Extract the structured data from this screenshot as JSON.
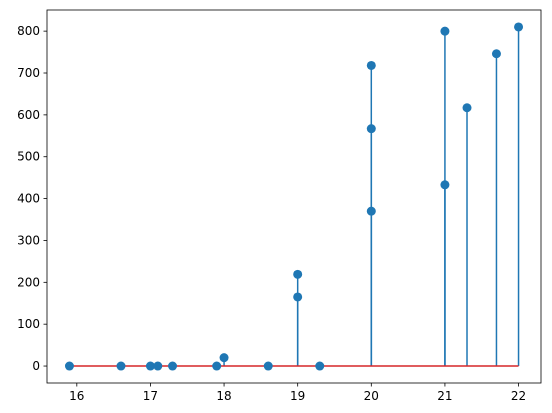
{
  "chart_data": {
    "type": "stem",
    "x": [
      15.9,
      16.6,
      17.0,
      17.1,
      17.3,
      17.9,
      18.0,
      18.6,
      19.0,
      19.0,
      19.3,
      20.0,
      20.0,
      20.0,
      21.0,
      21.0,
      21.3,
      21.7,
      22.0
    ],
    "values": [
      0,
      0,
      0,
      0,
      0,
      0,
      20,
      0,
      165,
      219,
      0,
      370,
      567,
      718,
      433,
      800,
      617,
      746,
      810
    ],
    "color": "#1f77b4",
    "baseline_color": "#d62728",
    "xlim": [
      15.595,
      22.305
    ],
    "xticks": [
      16,
      17,
      18,
      19,
      20,
      21,
      22
    ],
    "ylim": [
      -40.5,
      850.5
    ],
    "yticks": [
      0,
      100,
      200,
      300,
      400,
      500,
      600,
      700,
      800
    ]
  }
}
